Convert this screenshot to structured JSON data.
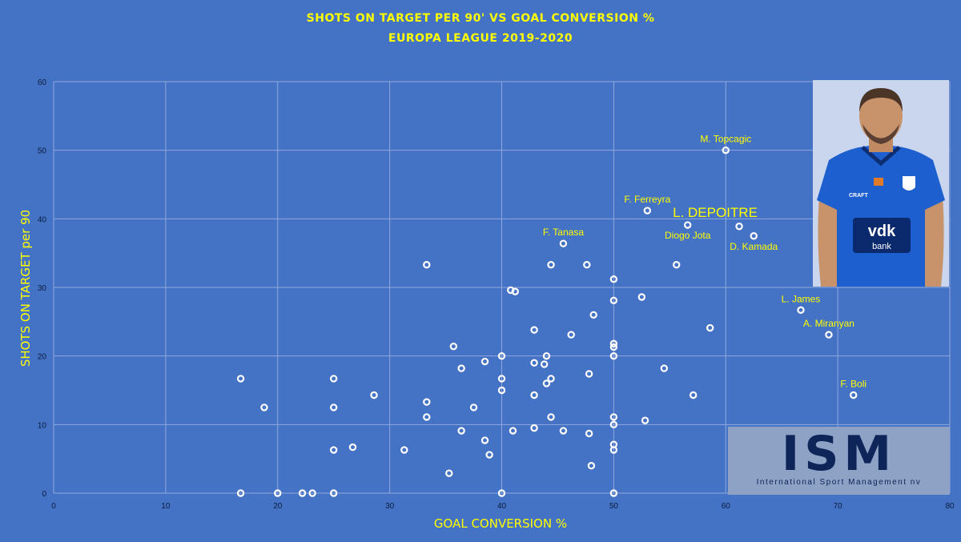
{
  "chart_data": {
    "type": "scatter",
    "title": [
      "SHOTS ON TARGET PER 90' VS GOAL CONVERSION %",
      "EUROPA LEAGUE 2019-2020"
    ],
    "xlabel": "GOAL CONVERSION %",
    "ylabel": "SHOTS ON TARGET per 90",
    "xlim": [
      0,
      80
    ],
    "ylim": [
      0,
      60
    ],
    "xticks": [
      0,
      10,
      20,
      30,
      40,
      50,
      60,
      70,
      80
    ],
    "yticks": [
      0,
      10,
      20,
      30,
      40,
      50,
      60
    ],
    "grid": true,
    "legend": "none",
    "points": [
      {
        "x": 60.0,
        "y": 50.0,
        "label": "M. Topcagic"
      },
      {
        "x": 53.0,
        "y": 41.2,
        "label": "F. Ferreyra"
      },
      {
        "x": 56.6,
        "y": 39.1,
        "label": "Diogo Jota"
      },
      {
        "x": 61.2,
        "y": 38.9,
        "label": "L. DEPOITRE",
        "highlight": true
      },
      {
        "x": 62.5,
        "y": 37.5,
        "label": "D. Kamada"
      },
      {
        "x": 45.5,
        "y": 36.4,
        "label": "F. Tanasa"
      },
      {
        "x": 66.7,
        "y": 26.7,
        "label": "L. James"
      },
      {
        "x": 69.2,
        "y": 23.1,
        "label": "A. Miranyan"
      },
      {
        "x": 71.4,
        "y": 14.3,
        "label": "F. Boli"
      },
      {
        "x": 33.3,
        "y": 33.3
      },
      {
        "x": 44.4,
        "y": 33.3
      },
      {
        "x": 47.6,
        "y": 33.3
      },
      {
        "x": 55.6,
        "y": 33.3
      },
      {
        "x": 50.0,
        "y": 31.2
      },
      {
        "x": 40.8,
        "y": 29.6
      },
      {
        "x": 41.2,
        "y": 29.4
      },
      {
        "x": 52.5,
        "y": 28.6
      },
      {
        "x": 50.0,
        "y": 28.1
      },
      {
        "x": 48.2,
        "y": 26.0
      },
      {
        "x": 42.9,
        "y": 23.8
      },
      {
        "x": 46.2,
        "y": 23.1
      },
      {
        "x": 58.6,
        "y": 24.1
      },
      {
        "x": 50.0,
        "y": 21.8
      },
      {
        "x": 50.0,
        "y": 21.3
      },
      {
        "x": 35.7,
        "y": 21.4
      },
      {
        "x": 40.0,
        "y": 20.0
      },
      {
        "x": 44.0,
        "y": 20.0
      },
      {
        "x": 50.0,
        "y": 20.0
      },
      {
        "x": 38.5,
        "y": 19.2
      },
      {
        "x": 42.9,
        "y": 19.0
      },
      {
        "x": 43.8,
        "y": 18.8
      },
      {
        "x": 36.4,
        "y": 18.2
      },
      {
        "x": 54.5,
        "y": 18.2
      },
      {
        "x": 47.8,
        "y": 17.4
      },
      {
        "x": 16.7,
        "y": 16.7
      },
      {
        "x": 25.0,
        "y": 16.7
      },
      {
        "x": 40.0,
        "y": 16.7
      },
      {
        "x": 44.4,
        "y": 16.7
      },
      {
        "x": 44.0,
        "y": 16.0
      },
      {
        "x": 40.0,
        "y": 15.0
      },
      {
        "x": 28.6,
        "y": 14.3
      },
      {
        "x": 42.9,
        "y": 14.3
      },
      {
        "x": 57.1,
        "y": 14.3
      },
      {
        "x": 33.3,
        "y": 13.3
      },
      {
        "x": 18.8,
        "y": 12.5
      },
      {
        "x": 25.0,
        "y": 12.5
      },
      {
        "x": 37.5,
        "y": 12.5
      },
      {
        "x": 33.3,
        "y": 11.1
      },
      {
        "x": 44.4,
        "y": 11.1
      },
      {
        "x": 50.0,
        "y": 11.1
      },
      {
        "x": 52.8,
        "y": 10.6
      },
      {
        "x": 50.0,
        "y": 10.0
      },
      {
        "x": 42.9,
        "y": 9.5
      },
      {
        "x": 36.4,
        "y": 9.1
      },
      {
        "x": 41.0,
        "y": 9.1
      },
      {
        "x": 45.5,
        "y": 9.1
      },
      {
        "x": 47.8,
        "y": 8.7
      },
      {
        "x": 38.5,
        "y": 7.7
      },
      {
        "x": 50.0,
        "y": 7.1
      },
      {
        "x": 26.7,
        "y": 6.7
      },
      {
        "x": 25.0,
        "y": 6.3
      },
      {
        "x": 31.3,
        "y": 6.3
      },
      {
        "x": 50.0,
        "y": 6.3
      },
      {
        "x": 38.9,
        "y": 5.6
      },
      {
        "x": 48.0,
        "y": 4.0
      },
      {
        "x": 35.3,
        "y": 2.9
      },
      {
        "x": 16.7,
        "y": 0
      },
      {
        "x": 20.0,
        "y": 0
      },
      {
        "x": 22.2,
        "y": 0
      },
      {
        "x": 23.1,
        "y": 0
      },
      {
        "x": 25.0,
        "y": 0
      },
      {
        "x": 40.0,
        "y": 0
      },
      {
        "x": 50.0,
        "y": 0
      }
    ]
  },
  "colors": {
    "background": "#4472c4",
    "title": "#ffff00",
    "marker": "#ffffff",
    "gridline": "#8fa9dc",
    "ticks": "#0b1d3e"
  },
  "logo": {
    "main": "ISM",
    "sub": "International Sport Management nv"
  },
  "photo": {
    "shirt_sponsor": "vdk bank",
    "shirt_brand": "CRAFT"
  }
}
